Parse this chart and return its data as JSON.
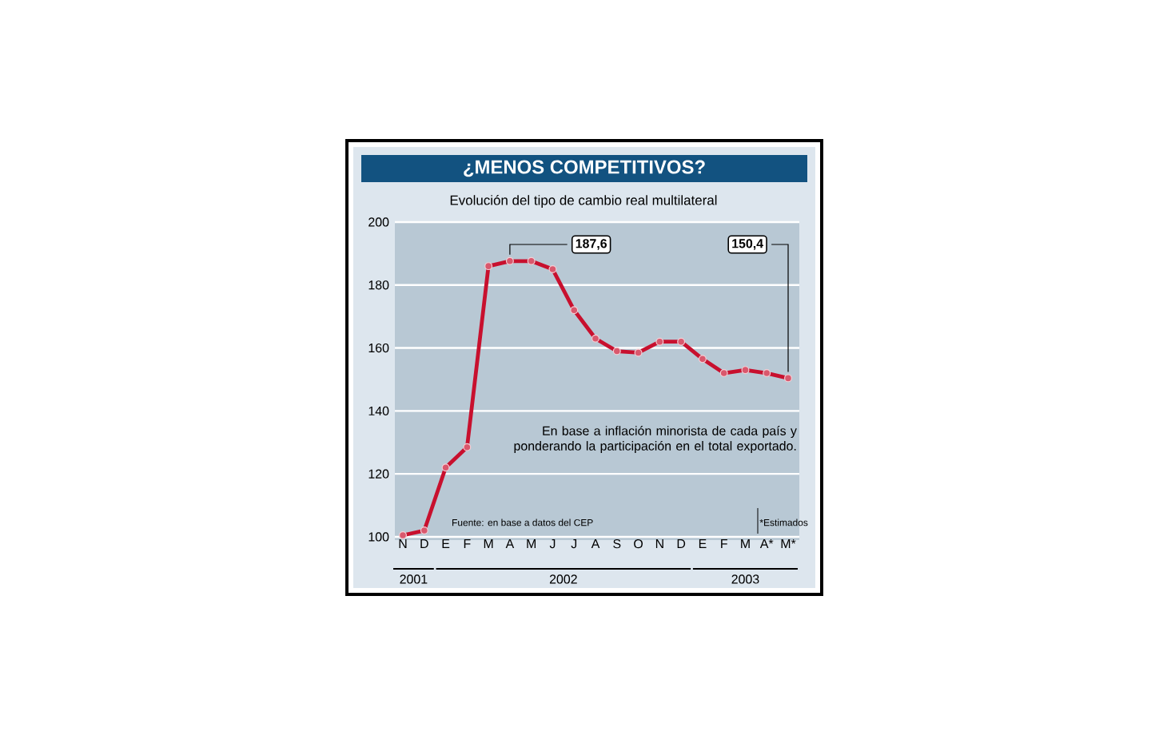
{
  "chart_data": {
    "type": "line",
    "title": "¿MENOS COMPETITIVOS?",
    "subtitle": "Evolución del tipo de cambio real multilateral",
    "categories": [
      "N",
      "D",
      "E",
      "F",
      "M",
      "A",
      "M",
      "J",
      "J",
      "A",
      "S",
      "O",
      "N",
      "D",
      "E",
      "F",
      "M",
      "A*",
      "M*"
    ],
    "series": [
      {
        "color": "#c8102e",
        "values": [
          100.5,
          102,
          122,
          128.5,
          186,
          187.6,
          187.6,
          185,
          172,
          163,
          159,
          158.5,
          162,
          162,
          156.5,
          152,
          153,
          152,
          150.4
        ],
        "value_labels": [
          null,
          null,
          null,
          null,
          null,
          "187,6",
          null,
          null,
          null,
          null,
          null,
          null,
          null,
          null,
          null,
          null,
          null,
          null,
          "150,4"
        ]
      }
    ],
    "ylim": [
      100,
      200
    ],
    "yticks": [
      100,
      120,
      140,
      160,
      180,
      200
    ],
    "grid": "y",
    "marker": "circle",
    "line_style": "solid",
    "annotations": [
      "En base a inflación minorista de cada país y ponderando la participación en el total exportado.",
      "Fuente: en base a datos del CEP",
      "*Estimados",
      "2001",
      "2002",
      "2003"
    ]
  }
}
